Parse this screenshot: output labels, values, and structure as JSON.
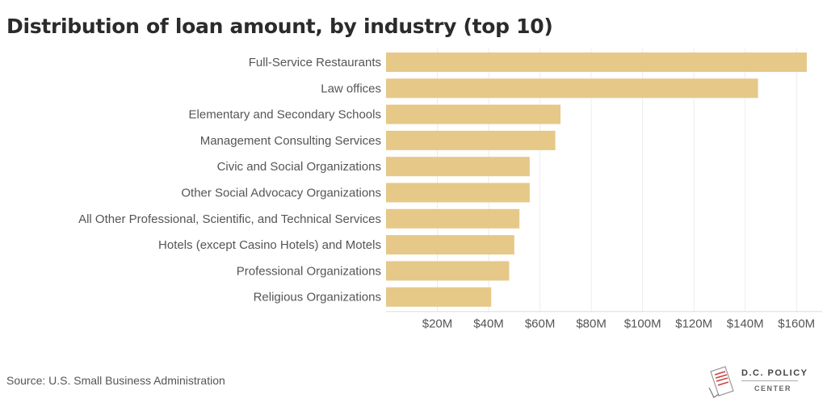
{
  "header": {
    "title": "Distribution of loan amount, by industry (top 10)"
  },
  "chart_data": {
    "type": "bar",
    "orientation": "horizontal",
    "categories": [
      "Full-Service Restaurants",
      "Law offices",
      "Elementary and Secondary Schools",
      "Management Consulting Services",
      "Civic and Social Organizations",
      "Other Social Advocacy Organizations",
      "All Other Professional, Scientific, and Technical Services",
      "Hotels (except Casino Hotels) and Motels",
      "Professional Organizations",
      "Religious Organizations"
    ],
    "values": [
      164,
      145,
      68,
      66,
      56,
      56,
      52,
      50,
      48,
      41
    ],
    "xlim": [
      0,
      170
    ],
    "xticks": [
      20,
      40,
      60,
      80,
      100,
      120,
      140,
      160
    ],
    "xtick_labels": [
      "$20M",
      "$40M",
      "$60M",
      "$80M",
      "$100M",
      "$120M",
      "$140M",
      "$160M"
    ],
    "bar_color": "#e6c888",
    "grid": true,
    "xlabel": "",
    "ylabel": ""
  },
  "footer": {
    "source": "Source: U.S. Small Business Administration",
    "logo_line1": "D.C. POLICY",
    "logo_line2": "CENTER"
  }
}
